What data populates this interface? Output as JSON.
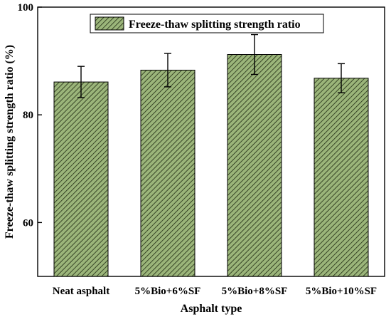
{
  "chart_data": {
    "type": "bar",
    "categories": [
      "Neat asphalt",
      "5%Bio+6%SF",
      "5%Bio+8%SF",
      "5%Bio+10%SF"
    ],
    "series": [
      {
        "name": "Freeze-thaw splitting strength ratio",
        "values": [
          86.1,
          88.3,
          91.2,
          86.8
        ],
        "errors": [
          2.9,
          3.1,
          3.7,
          2.7
        ],
        "color": "#9bb57a",
        "hatch": "diagonal"
      }
    ],
    "xlabel": "Asphalt type",
    "ylabel": "Freeze-thaw splitting strength ratio (%)",
    "ylim": [
      50,
      100
    ],
    "yticks": [
      60,
      80,
      100
    ],
    "ytick_labels": [
      "60",
      "80",
      "100"
    ],
    "grid": false,
    "legend_position": "top-center"
  }
}
